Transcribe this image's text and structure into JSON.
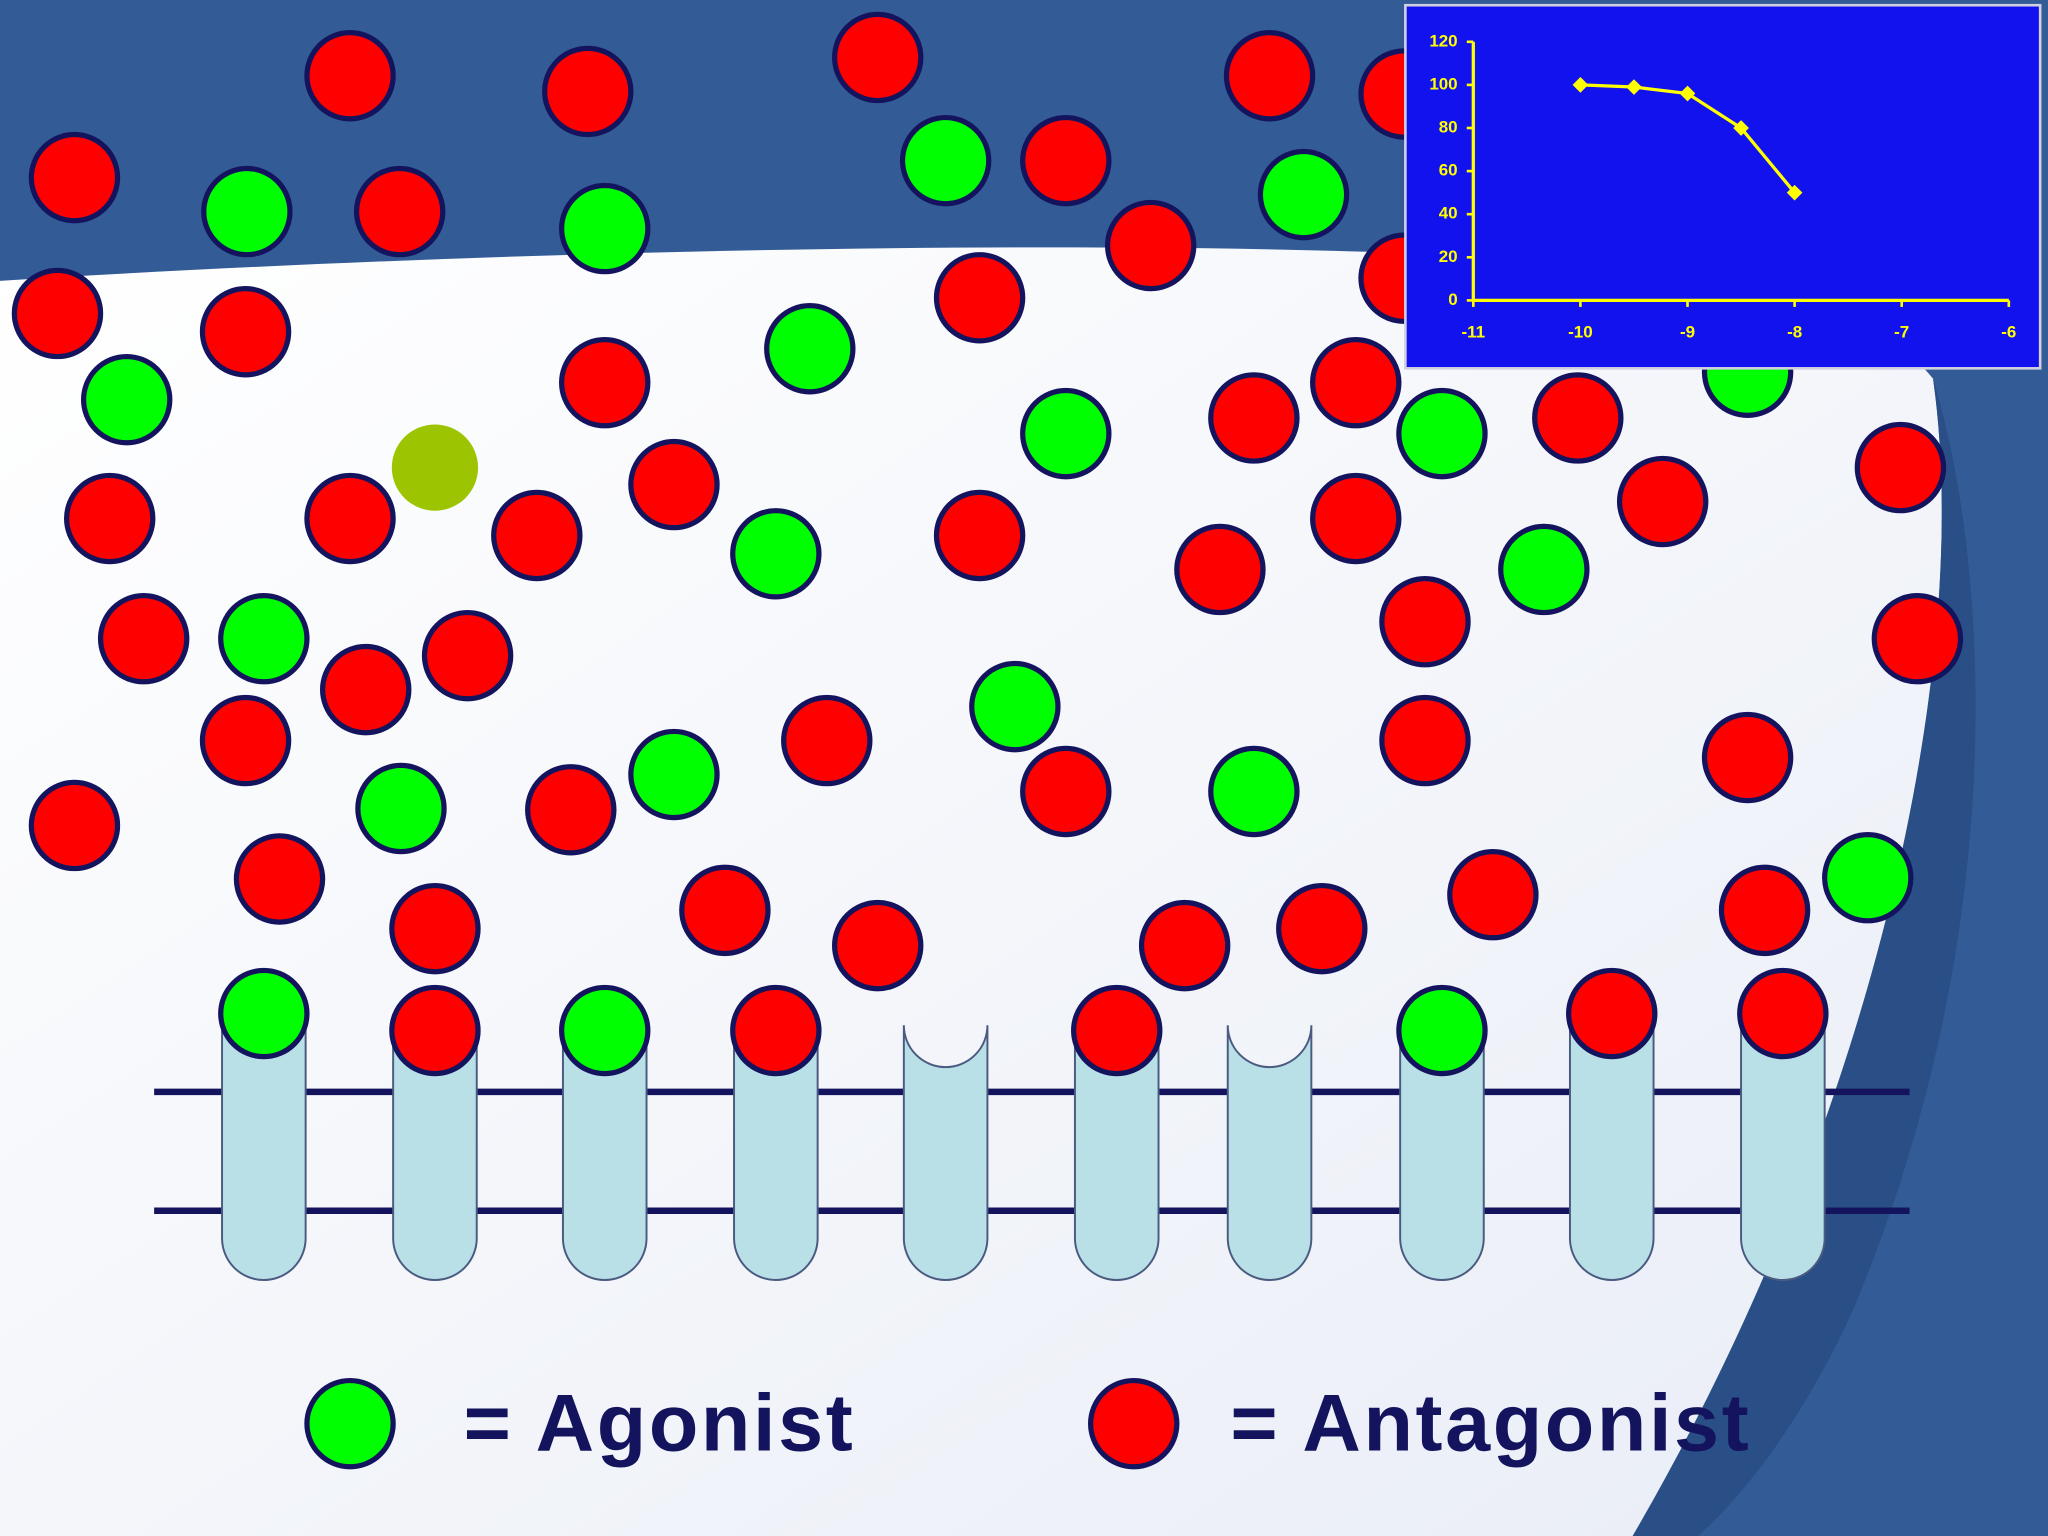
{
  "chart_data": {
    "type": "line",
    "x": [
      -10,
      -9.5,
      -9,
      -8.5,
      -8
    ],
    "values": [
      100,
      99,
      96,
      80,
      50
    ],
    "color": "#ffff00",
    "background": "#1212ee",
    "xlim": [
      -11,
      -6
    ],
    "xticks": [
      -11,
      -10,
      -9,
      -8,
      -7,
      -6
    ],
    "ylim": [
      0,
      120
    ],
    "yticks": [
      0,
      20,
      40,
      60,
      80,
      100,
      120
    ]
  },
  "legend": {
    "agonist": "= Agonist",
    "antagonist": "= Antagonist"
  }
}
